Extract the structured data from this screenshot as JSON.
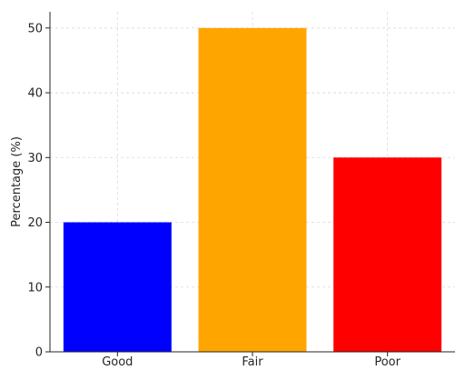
{
  "chart_data": {
    "type": "bar",
    "title": "",
    "xlabel": "",
    "ylabel": "Percentage (%)",
    "categories": [
      "Good",
      "Fair",
      "Poor"
    ],
    "values": [
      20,
      50,
      30
    ],
    "colors": [
      "#0000ff",
      "#ffa500",
      "#ff0000"
    ],
    "ylim": [
      0,
      52.5
    ],
    "yticks": [
      0,
      10,
      20,
      30,
      40,
      50
    ],
    "grid": true
  }
}
